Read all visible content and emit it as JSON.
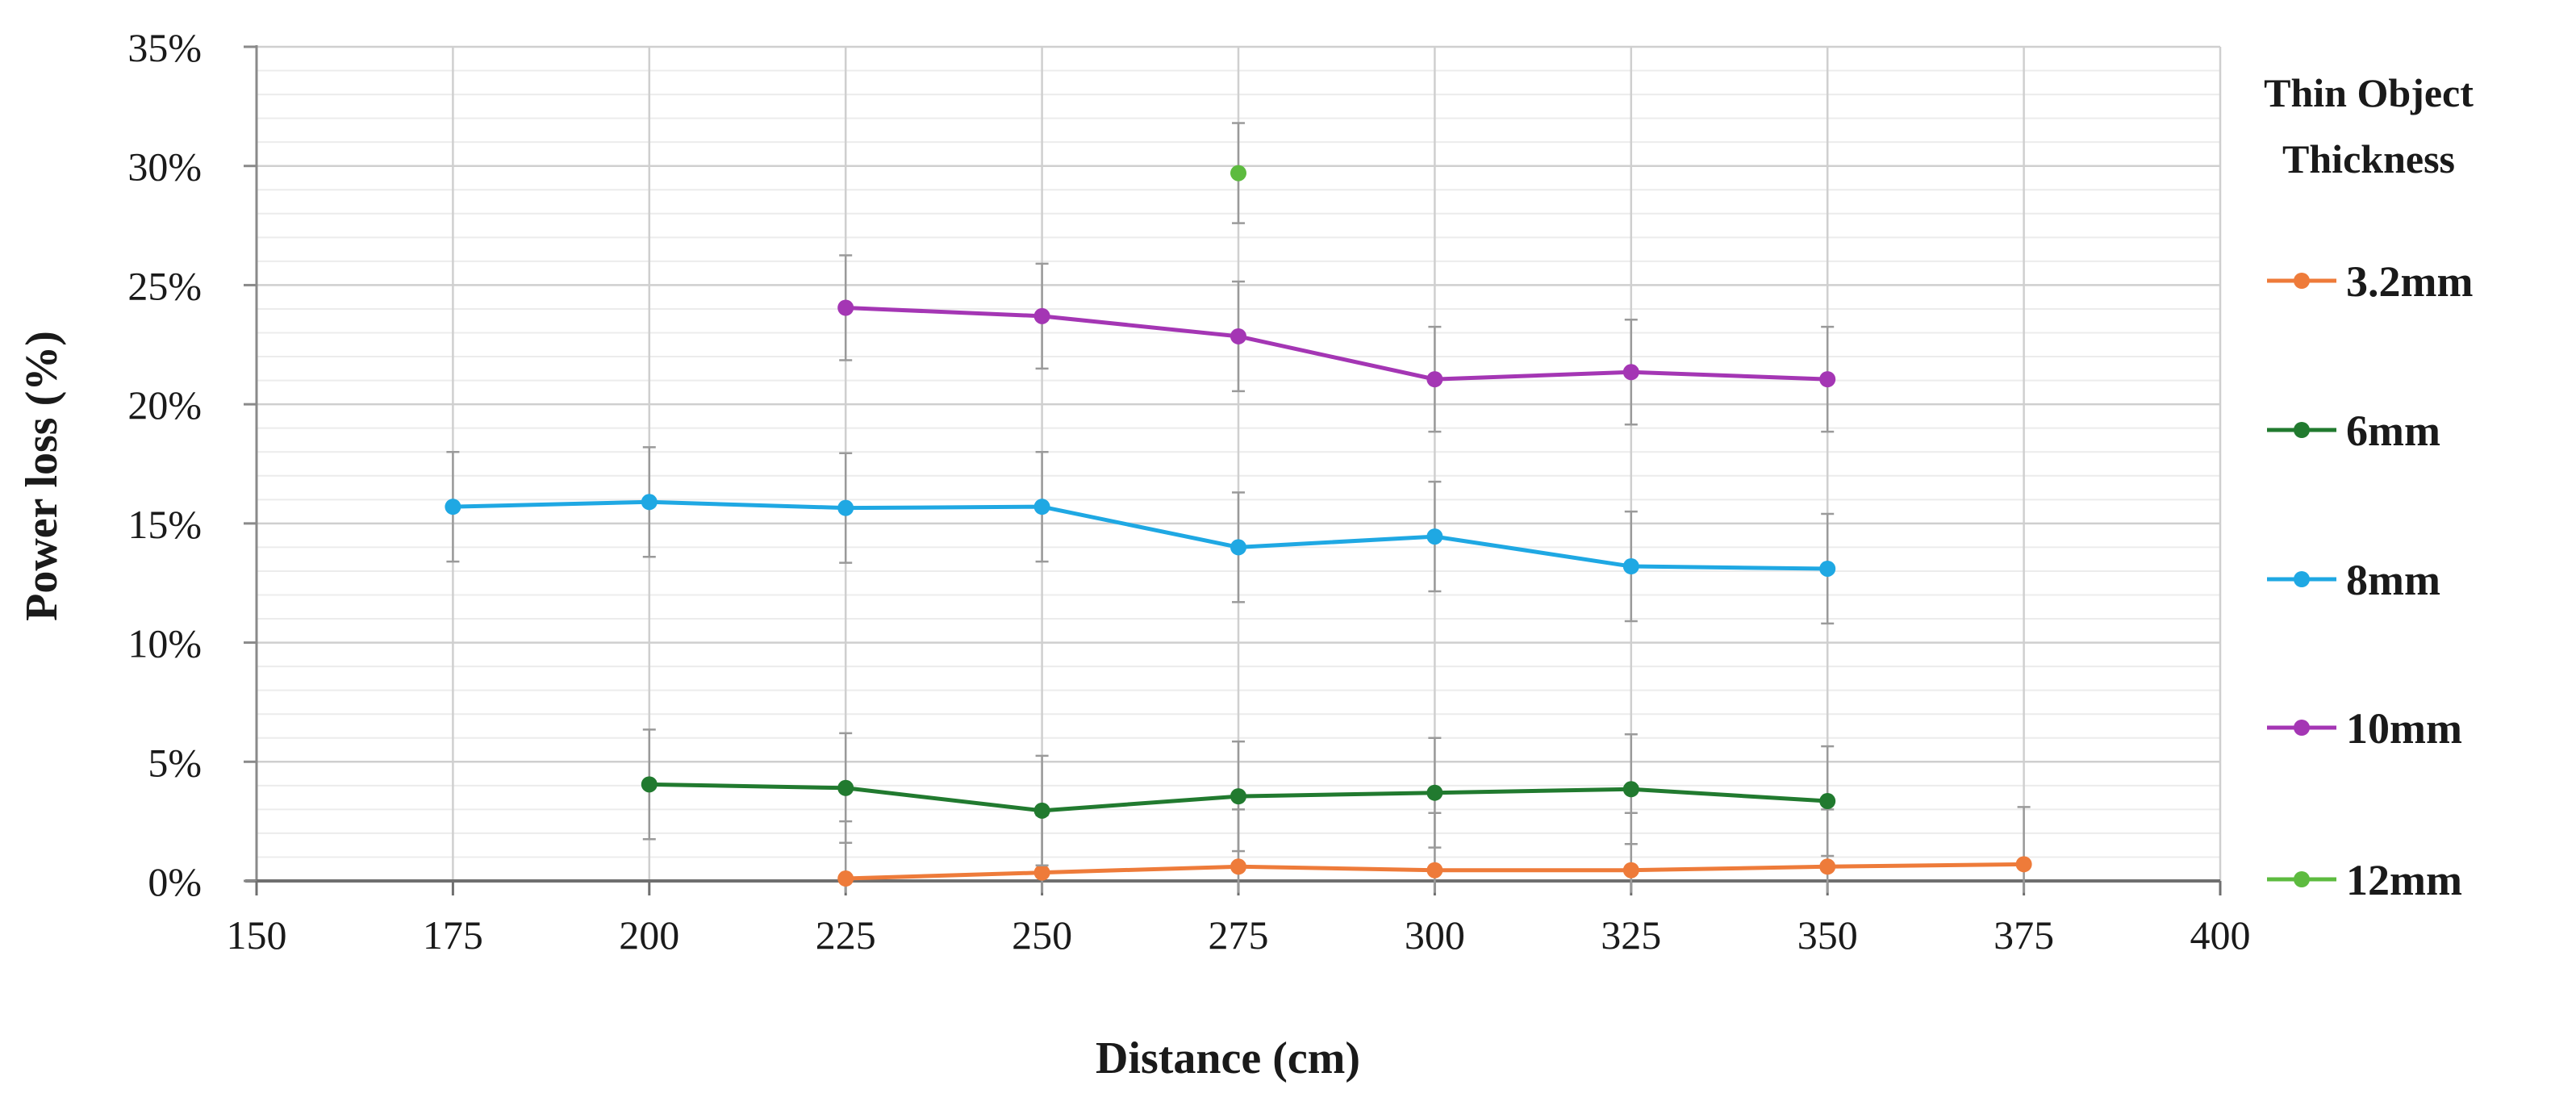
{
  "chart_data": {
    "type": "line",
    "title": "",
    "xlabel": "Distance (cm)",
    "ylabel": "Power loss (%)",
    "xlim": [
      150,
      400
    ],
    "ylim": [
      0,
      35
    ],
    "x_ticks": [
      150,
      175,
      200,
      225,
      250,
      275,
      300,
      325,
      350,
      375,
      400
    ],
    "x_tick_labels": [
      "150",
      "175",
      "200",
      "225",
      "250",
      "275",
      "300",
      "325",
      "350",
      "375",
      "400"
    ],
    "y_ticks": [
      0,
      5,
      10,
      15,
      20,
      25,
      30,
      35
    ],
    "y_tick_labels": [
      "0%",
      "5%",
      "10%",
      "15%",
      "20%",
      "25%",
      "30%",
      "35%"
    ],
    "grid": true,
    "legend_title_lines": [
      "Thin Object",
      "Thickness"
    ],
    "legend_position": "right",
    "series": [
      {
        "name": "3.2mm",
        "color": "#ee7b3a",
        "x": [
          225,
          250,
          275,
          300,
          325,
          350,
          375
        ],
        "y": [
          0.1,
          0.35,
          0.6,
          0.45,
          0.45,
          0.6,
          0.7
        ],
        "error": [
          2.4,
          2.4,
          2.4,
          2.4,
          2.4,
          2.4,
          2.4
        ]
      },
      {
        "name": "6mm",
        "color": "#217a2f",
        "x": [
          200,
          225,
          250,
          275,
          300,
          325,
          350
        ],
        "y": [
          4.05,
          3.9,
          2.95,
          3.55,
          3.7,
          3.85,
          3.35
        ],
        "error": [
          2.3,
          2.3,
          2.3,
          2.3,
          2.3,
          2.3,
          2.3
        ]
      },
      {
        "name": "8mm",
        "color": "#1fa8e3",
        "x": [
          175,
          200,
          225,
          250,
          275,
          300,
          325,
          350
        ],
        "y": [
          15.7,
          15.9,
          15.65,
          15.7,
          14.0,
          14.45,
          13.2,
          13.1
        ],
        "error": [
          2.3,
          2.3,
          2.3,
          2.3,
          2.3,
          2.3,
          2.3,
          2.3
        ]
      },
      {
        "name": "10mm",
        "color": "#a436b4",
        "x": [
          225,
          250,
          275,
          300,
          325,
          350
        ],
        "y": [
          24.05,
          23.7,
          22.85,
          21.05,
          21.35,
          21.05
        ],
        "error": [
          2.2,
          2.2,
          2.3,
          2.2,
          2.2,
          2.2
        ]
      },
      {
        "name": "12mm",
        "color": "#5dbb3f",
        "x": [
          275
        ],
        "y": [
          29.7
        ],
        "error": [
          2.1
        ]
      }
    ]
  }
}
